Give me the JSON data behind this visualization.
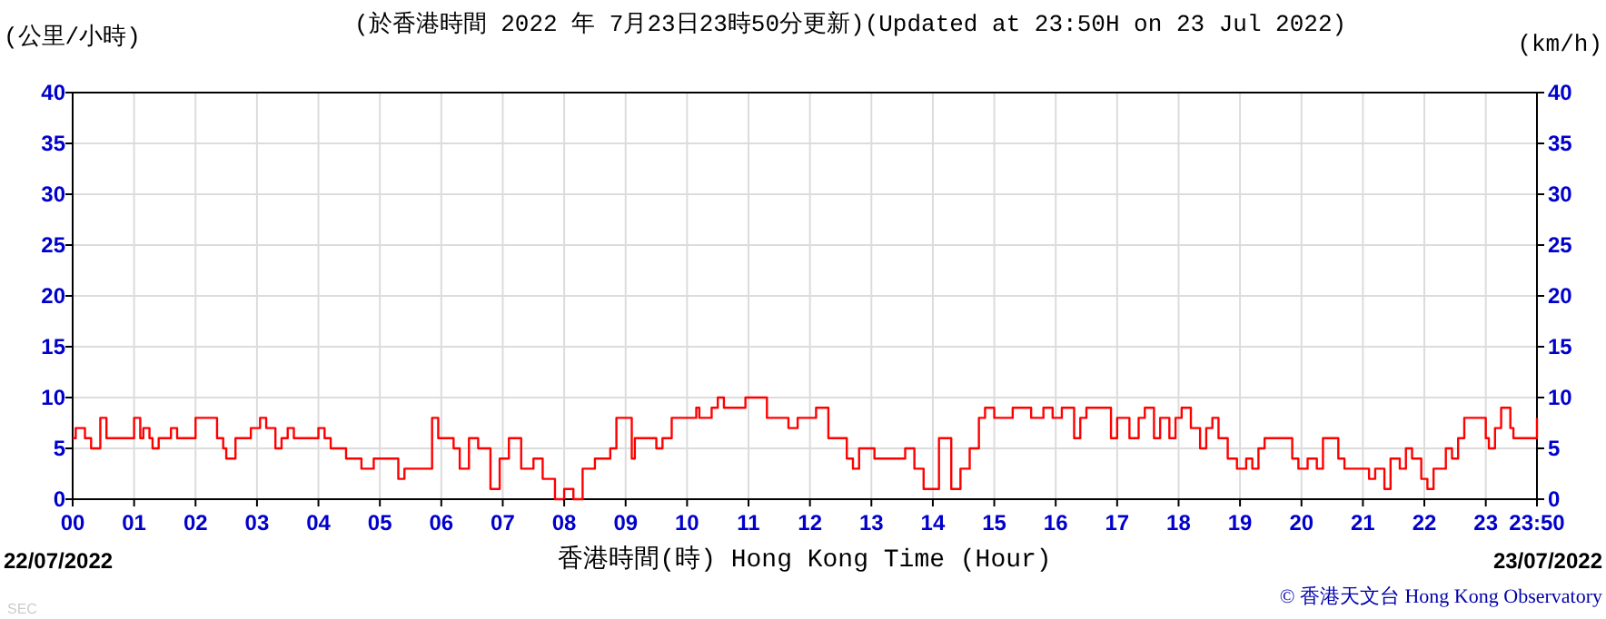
{
  "chart_data": {
    "type": "step",
    "title": "(於香港時間 2022 年 7月23日23時50分更新)(Updated at 23:50H on 23 Jul 2022)",
    "xlabel": "香港時間(時) Hong Kong Time (Hour)",
    "ylabel": "(公里/小時)",
    "y2label": "(km/h)",
    "annotations": [
      "22/07/2022",
      "23/07/2022",
      "© 香港天文台 Hong Kong Observatory",
      "SEC"
    ],
    "x": [
      0,
      0.05,
      0.2,
      0.3,
      0.45,
      0.55,
      1.0,
      1.1,
      1.15,
      1.25,
      1.3,
      1.4,
      1.6,
      1.7,
      1.8,
      2.0,
      2.35,
      2.45,
      2.5,
      2.65,
      2.9,
      3.05,
      3.15,
      3.3,
      3.4,
      3.5,
      3.6,
      4.0,
      4.1,
      4.2,
      4.45,
      4.7,
      4.9,
      5.3,
      5.4,
      5.85,
      5.95,
      6.2,
      6.3,
      6.45,
      6.6,
      6.8,
      6.95,
      7.1,
      7.3,
      7.5,
      7.65,
      7.85,
      8.0,
      8.15,
      8.3,
      8.5,
      8.75,
      8.85,
      9.1,
      9.15,
      9.5,
      9.6,
      9.75,
      10.15,
      10.2,
      10.4,
      10.5,
      10.6,
      10.95,
      11.3,
      11.65,
      11.8,
      12.1,
      12.3,
      12.6,
      12.7,
      12.8,
      13.05,
      13.55,
      13.7,
      13.85,
      14.1,
      14.3,
      14.45,
      14.6,
      14.75,
      14.85,
      15.0,
      15.3,
      15.6,
      15.8,
      15.95,
      16.1,
      16.3,
      16.4,
      16.5,
      16.9,
      17.0,
      17.2,
      17.35,
      17.45,
      17.6,
      17.7,
      17.85,
      17.95,
      18.05,
      18.2,
      18.35,
      18.45,
      18.55,
      18.65,
      18.8,
      18.95,
      19.1,
      19.2,
      19.3,
      19.4,
      19.85,
      19.95,
      20.1,
      20.25,
      20.35,
      20.6,
      20.7,
      21.1,
      21.2,
      21.35,
      21.45,
      21.6,
      21.7,
      21.8,
      21.95,
      22.05,
      22.15,
      22.35,
      22.45,
      22.55,
      22.65,
      23.0,
      23.05,
      23.15,
      23.25,
      23.4,
      23.45,
      23.8,
      23.833
    ],
    "values": [
      6,
      7,
      6,
      5,
      8,
      6,
      8,
      6,
      7,
      6,
      5,
      6,
      7,
      6,
      6,
      8,
      6,
      5,
      4,
      6,
      7,
      8,
      7,
      5,
      6,
      7,
      6,
      7,
      6,
      5,
      4,
      3,
      4,
      2,
      3,
      8,
      6,
      5,
      3,
      6,
      5,
      1,
      4,
      6,
      3,
      4,
      2,
      0,
      1,
      0,
      3,
      4,
      5,
      8,
      4,
      6,
      5,
      6,
      8,
      9,
      8,
      9,
      10,
      9,
      10,
      8,
      7,
      8,
      9,
      6,
      4,
      3,
      5,
      4,
      5,
      3,
      1,
      6,
      1,
      3,
      5,
      8,
      9,
      8,
      9,
      8,
      9,
      8,
      9,
      6,
      8,
      9,
      6,
      8,
      6,
      8,
      9,
      6,
      8,
      6,
      8,
      9,
      7,
      5,
      7,
      8,
      6,
      4,
      3,
      4,
      3,
      5,
      6,
      4,
      3,
      4,
      3,
      6,
      4,
      3,
      2,
      3,
      1,
      4,
      3,
      5,
      4,
      2,
      1,
      3,
      5,
      4,
      6,
      8,
      6,
      5,
      7,
      9,
      7,
      6,
      6,
      8
    ],
    "color": "#ff0000",
    "xlim": [
      0,
      23.833
    ],
    "xticks": [
      {
        "value": 0,
        "label": "00"
      },
      {
        "value": 1,
        "label": "01"
      },
      {
        "value": 2,
        "label": "02"
      },
      {
        "value": 3,
        "label": "03"
      },
      {
        "value": 4,
        "label": "04"
      },
      {
        "value": 5,
        "label": "05"
      },
      {
        "value": 6,
        "label": "06"
      },
      {
        "value": 7,
        "label": "07"
      },
      {
        "value": 8,
        "label": "08"
      },
      {
        "value": 9,
        "label": "09"
      },
      {
        "value": 10,
        "label": "10"
      },
      {
        "value": 11,
        "label": "11"
      },
      {
        "value": 12,
        "label": "12"
      },
      {
        "value": 13,
        "label": "13"
      },
      {
        "value": 14,
        "label": "14"
      },
      {
        "value": 15,
        "label": "15"
      },
      {
        "value": 16,
        "label": "16"
      },
      {
        "value": 17,
        "label": "17"
      },
      {
        "value": 18,
        "label": "18"
      },
      {
        "value": 19,
        "label": "19"
      },
      {
        "value": 20,
        "label": "20"
      },
      {
        "value": 21,
        "label": "21"
      },
      {
        "value": 22,
        "label": "22"
      },
      {
        "value": 23,
        "label": "23"
      },
      {
        "value": 23.833,
        "label": "23:50"
      }
    ],
    "ylim": [
      0,
      40
    ],
    "yticks": [
      0,
      5,
      10,
      15,
      20,
      25,
      30,
      35,
      40
    ],
    "y2lim": [
      0,
      40
    ],
    "y2ticks": [
      0,
      5,
      10,
      15,
      20,
      25,
      30,
      35,
      40
    ],
    "grid": true
  }
}
